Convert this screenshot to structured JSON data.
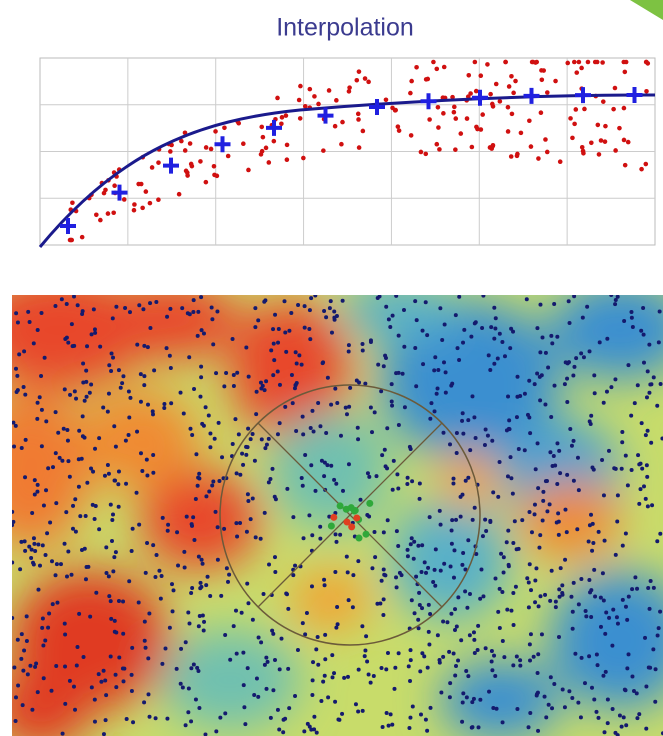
{
  "header": {
    "title": "Interpolation"
  }
}
